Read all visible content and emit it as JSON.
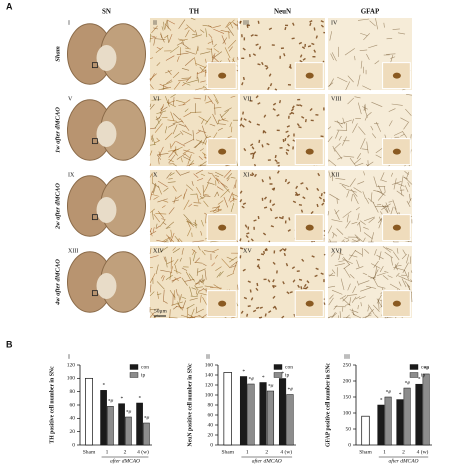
{
  "panel_a": {
    "label": "A",
    "columns": [
      "SN",
      "TH",
      "NeuN",
      "GFAP"
    ],
    "rows": [
      "Sham",
      "1w after dMCAO",
      "2w after dMCAO",
      "4w after dMCAO"
    ],
    "numerals": [
      "I",
      "II",
      "III",
      "IV",
      "V",
      "VI",
      "VII",
      "VIII",
      "IX",
      "X",
      "XI",
      "XII",
      "XIII",
      "XIV",
      "XV",
      "XVI"
    ],
    "scale_bar": "50μm"
  },
  "panel_b": {
    "label": "B"
  },
  "chart_data": [
    {
      "type": "bar",
      "panel": "I",
      "ylabel": "TH positive cell number in SNc",
      "xlabel": "after dMCAO",
      "categories": [
        "Sham",
        "1",
        "2",
        "4 (w)"
      ],
      "sham_value": 100,
      "sham_color": "#ffffff",
      "ylim": [
        0,
        120
      ],
      "yticks": [
        0,
        20,
        40,
        60,
        80,
        100,
        120
      ],
      "series": [
        {
          "name": "con",
          "color": "#1a1a1a",
          "values": [
            null,
            82,
            62,
            63
          ],
          "marks": [
            null,
            "*",
            "*",
            "*"
          ]
        },
        {
          "name": "ip",
          "color": "#8c8c8c",
          "values": [
            null,
            58,
            42,
            33
          ],
          "marks": [
            null,
            "*#",
            "*#",
            "*#"
          ]
        }
      ]
    },
    {
      "type": "bar",
      "panel": "II",
      "ylabel": "NeuN positive cell number in SNc",
      "xlabel": "after dMCAO",
      "categories": [
        "Sham",
        "1",
        "2",
        "4 (w)"
      ],
      "sham_value": 145,
      "sham_color": "#ffffff",
      "ylim": [
        0,
        160
      ],
      "yticks": [
        0,
        20,
        40,
        60,
        80,
        100,
        120,
        140,
        160
      ],
      "series": [
        {
          "name": "con",
          "color": "#1a1a1a",
          "values": [
            null,
            137,
            125,
            133
          ],
          "marks": [
            null,
            "*",
            "*",
            "*"
          ]
        },
        {
          "name": "ip",
          "color": "#8c8c8c",
          "values": [
            null,
            122,
            108,
            101
          ],
          "marks": [
            null,
            "*#",
            "*#",
            "*#"
          ]
        }
      ]
    },
    {
      "type": "bar",
      "panel": "III",
      "ylabel": "GFAP positive cell number in SNc",
      "xlabel": "after dMCAO",
      "categories": [
        "Sham",
        "1",
        "2",
        "4 (w)"
      ],
      "sham_value": 90,
      "sham_color": "#ffffff",
      "ylim": [
        0,
        250
      ],
      "yticks": [
        0,
        50,
        100,
        150,
        200,
        250
      ],
      "series": [
        {
          "name": "con",
          "color": "#1a1a1a",
          "values": [
            null,
            125,
            142,
            190
          ],
          "marks": [
            null,
            "*",
            "*",
            "*"
          ]
        },
        {
          "name": "ip",
          "color": "#8c8c8c",
          "values": [
            null,
            150,
            178,
            222
          ],
          "marks": [
            null,
            "*#",
            "*#",
            "*#"
          ]
        }
      ]
    }
  ]
}
